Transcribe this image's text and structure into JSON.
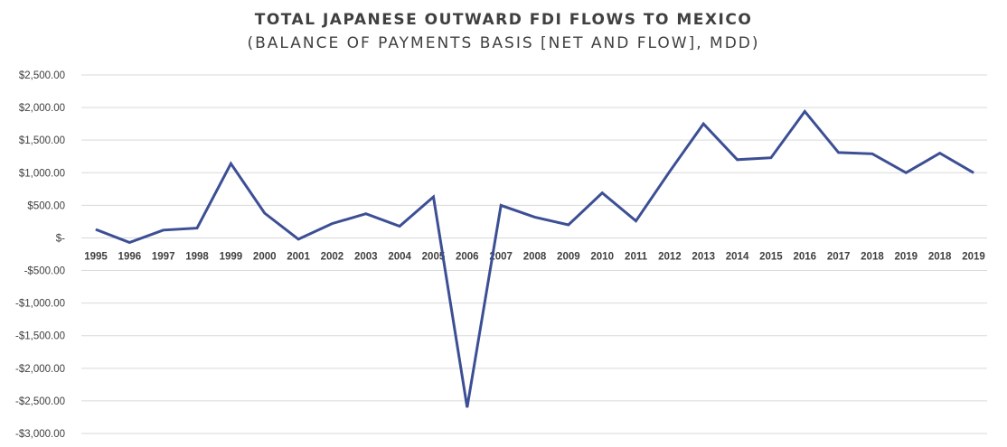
{
  "chart_data": {
    "type": "line",
    "title": "TOTAL JAPANESE OUTWARD FDI FLOWS TO MEXICO",
    "subtitle": "(BALANCE OF PAYMENTS BASIS [NET AND FLOW], MDD)",
    "xlabel": "",
    "ylabel": "",
    "ylim": [
      -3000,
      2500
    ],
    "y_ticks": [
      2500,
      2000,
      1500,
      1000,
      500,
      0,
      -500,
      -1000,
      -1500,
      -2000,
      -2500,
      -3000
    ],
    "y_tick_labels": [
      "$2,500.00",
      "$2,000.00",
      "$1,500.00",
      "$1,000.00",
      "$500.00",
      "$-",
      "-$500.00",
      "-$1,000.00",
      "-$1,500.00",
      "-$2,000.00",
      "-$2,500.00",
      "-$3,000.00"
    ],
    "grid": true,
    "legend": "none",
    "categories": [
      "1995",
      "1996",
      "1997",
      "1998",
      "1999",
      "2000",
      "2001",
      "2002",
      "2003",
      "2004",
      "2005",
      "2006",
      "2007",
      "2008",
      "2009",
      "2010",
      "2011",
      "2012",
      "2013",
      "2014",
      "2015",
      "2016",
      "2017",
      "2018",
      "2019",
      "2018",
      "2019"
    ],
    "series": [
      {
        "color": "#3c4f94",
        "values": [
          130,
          -70,
          120,
          150,
          1140,
          380,
          -20,
          220,
          370,
          180,
          630,
          -2600,
          500,
          320,
          200,
          690,
          260,
          1020,
          1750,
          1200,
          1230,
          1940,
          1310,
          1290,
          1000,
          1300,
          1000
        ]
      }
    ],
    "gridline_color": "#d9d9d9",
    "line_color": "#3c4f94"
  }
}
